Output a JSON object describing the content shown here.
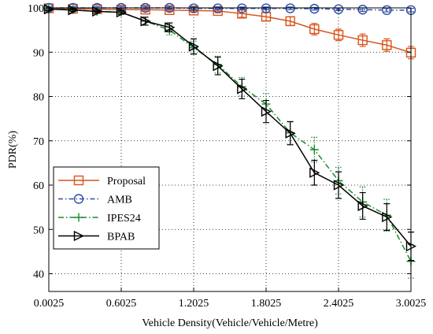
{
  "chart_data": {
    "type": "line",
    "xlabel": "Vehicle Density(Vehicle/Vehicle/Metre)",
    "ylabel": "PDR(%)",
    "xlim": [
      0.0025,
      3.0025
    ],
    "ylim": [
      36,
      100
    ],
    "x_ticks": [
      0.0025,
      0.6025,
      1.2025,
      1.8025,
      2.4025,
      3.0025
    ],
    "x_tick_labels": [
      "0.0025",
      "0.6025",
      "1.2025",
      "1.8025",
      "2.4025",
      "3.0025"
    ],
    "y_ticks": [
      40,
      50,
      60,
      70,
      80,
      90,
      100
    ],
    "y_tick_labels": [
      "40",
      "50",
      "60",
      "70",
      "80",
      "90",
      "100"
    ],
    "grid": "dotted",
    "legend_position": "bottom-left",
    "x": [
      0.0025,
      0.2025,
      0.4025,
      0.6025,
      0.8025,
      1.0025,
      1.2025,
      1.4025,
      1.6025,
      1.8025,
      2.0025,
      2.2025,
      2.4025,
      2.6025,
      2.8025,
      3.0025
    ],
    "series": [
      {
        "name": "Proposal",
        "color": "#d95319",
        "dash": "none",
        "marker": "square",
        "values": [
          99.9,
          99.8,
          99.7,
          99.6,
          99.6,
          99.5,
          99.4,
          99.3,
          98.7,
          98.0,
          97.0,
          95.2,
          93.9,
          92.7,
          91.6,
          89.9
        ],
        "errors": [
          0.3,
          0.3,
          0.3,
          0.3,
          0.3,
          0.3,
          0.3,
          0.4,
          0.8,
          0.9,
          1.0,
          1.3,
          1.3,
          1.4,
          1.4,
          1.4
        ]
      },
      {
        "name": "AMB",
        "color": "#2e4fa6",
        "dash": "6,3,1.5,3",
        "marker": "circle",
        "values": [
          100,
          100,
          100,
          100,
          100,
          100,
          99.9,
          99.9,
          99.9,
          99.9,
          99.9,
          99.8,
          99.7,
          99.6,
          99.5,
          99.5
        ],
        "errors": [
          0.3,
          0.3,
          0.3,
          0.3,
          0.3,
          0.3,
          0.3,
          0.3,
          0.3,
          0.3,
          0.3,
          0.3,
          0.3,
          0.4,
          0.4,
          0.4
        ]
      },
      {
        "name": "IPES24",
        "color": "#1a8a2e",
        "dash": "7,3,1.5,3",
        "marker": "plus",
        "values": [
          99.8,
          99.6,
          99.2,
          99.0,
          97.0,
          95.0,
          91.0,
          87.2,
          82.2,
          78.3,
          71.8,
          68.0,
          61.0,
          56.2,
          53.2,
          42.8
        ],
        "errors": [
          0.3,
          0.3,
          0.3,
          0.5,
          0.9,
          1.1,
          1.5,
          1.9,
          2.1,
          2.4,
          2.6,
          2.8,
          3.0,
          3.4,
          3.6,
          3.8
        ]
      },
      {
        "name": "BPAB",
        "color": "#000000",
        "dash": "none",
        "marker": "triangle-right",
        "values": [
          99.7,
          99.5,
          99.2,
          99.0,
          97.0,
          95.6,
          91.3,
          86.9,
          81.7,
          76.6,
          71.7,
          62.8,
          60.0,
          55.3,
          52.8,
          46.2
        ],
        "errors": [
          0.3,
          0.3,
          0.3,
          0.4,
          0.9,
          1.0,
          1.7,
          2.0,
          2.2,
          2.5,
          2.6,
          2.8,
          3.0,
          3.0,
          3.0,
          3.2
        ]
      }
    ]
  }
}
